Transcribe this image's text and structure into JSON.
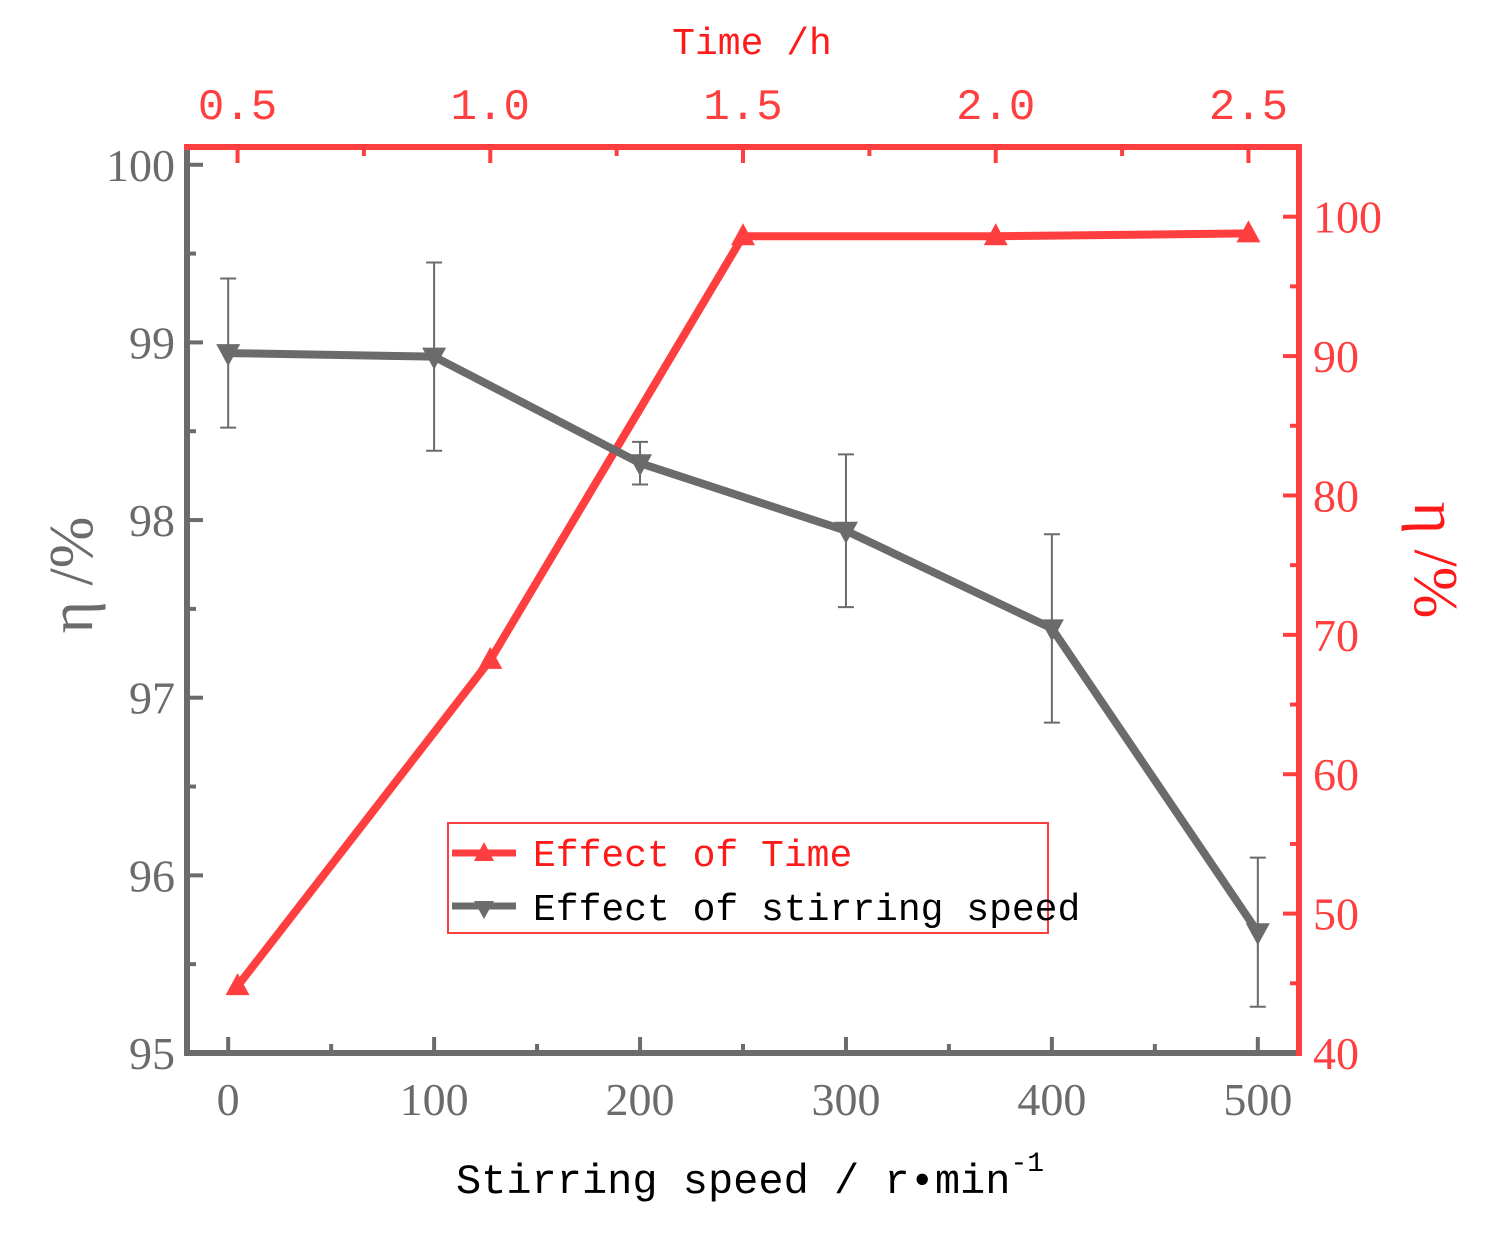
{
  "chart_data": {
    "type": "line",
    "title": "",
    "xlabel": "Stirring speed / r•min",
    "xlabel_sup": "-1",
    "x2label": "Time /h",
    "ylabel": "η /%",
    "y2label": "η /%",
    "xlim": [
      -20,
      520
    ],
    "x2lim": [
      0.4,
      2.6
    ],
    "ylim": [
      95,
      100.1
    ],
    "y2lim": [
      40,
      105
    ],
    "xticks": [
      0,
      100,
      200,
      300,
      400,
      500
    ],
    "x2ticks": [
      0.5,
      1.0,
      1.5,
      2.0,
      2.5
    ],
    "x2tick_labels": [
      "0.5",
      "1.0",
      "1.5",
      "2.0",
      "2.5"
    ],
    "yticks": [
      95,
      96,
      97,
      98,
      99,
      100
    ],
    "y2ticks": [
      40,
      50,
      60,
      70,
      80,
      90,
      100
    ],
    "series": [
      {
        "name": "Effect of Time",
        "axis": "top-right",
        "color": "#ff3f3f",
        "marker": "triangle-up",
        "x": [
          0.5,
          1.0,
          1.5,
          2.0,
          2.5
        ],
        "values": [
          44.8,
          68.2,
          98.6,
          98.6,
          98.8
        ]
      },
      {
        "name": "Effect of stirring speed",
        "axis": "bottom-left",
        "color": "#6b6b6b",
        "marker": "triangle-down",
        "x": [
          0,
          100,
          200,
          300,
          400,
          500
        ],
        "values": [
          98.94,
          98.92,
          98.32,
          97.94,
          97.39,
          95.68
        ],
        "errors": [
          0.42,
          0.53,
          0.12,
          0.43,
          0.53,
          0.42
        ]
      }
    ],
    "legend_position": "center-bottom"
  }
}
